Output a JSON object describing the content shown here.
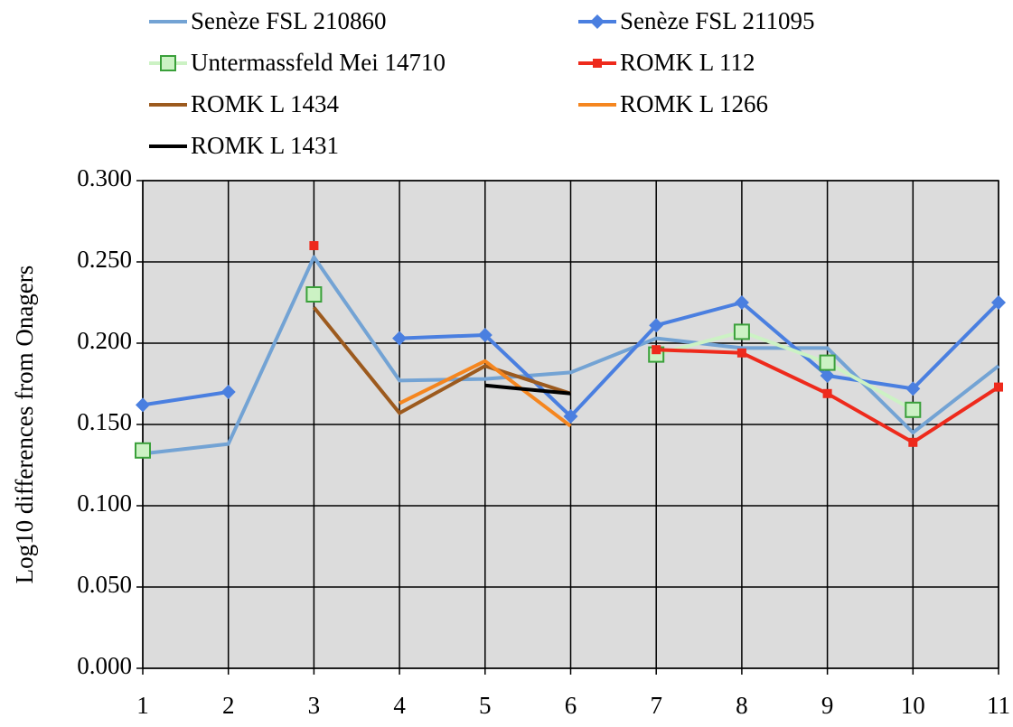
{
  "chart_data": {
    "type": "line",
    "y_label": "Log10 differences from Onagers",
    "x": [
      1,
      2,
      3,
      4,
      5,
      6,
      7,
      8,
      9,
      10,
      11
    ],
    "xlim": [
      1,
      11
    ],
    "xticks": [
      1,
      2,
      3,
      4,
      5,
      6,
      7,
      8,
      9,
      10,
      11
    ],
    "ylim": [
      0,
      0.3
    ],
    "yticks": [
      {
        "value": 0,
        "label": "0.000"
      },
      {
        "value": 0.05,
        "label": "0.050"
      },
      {
        "value": 0.1,
        "label": "0.100"
      },
      {
        "value": 0.15,
        "label": "0.150"
      },
      {
        "value": 0.2,
        "label": "0.200"
      },
      {
        "value": 0.25,
        "label": "0.250"
      },
      {
        "value": 0.3,
        "label": "0.300"
      }
    ],
    "grid": true,
    "series": [
      {
        "name": "Senèze FSL 210860",
        "color": "#73a3d4",
        "marker": "none",
        "values": [
          0.132,
          0.138,
          0.253,
          0.177,
          0.178,
          0.182,
          0.203,
          0.197,
          0.197,
          0.145,
          0.186
        ]
      },
      {
        "name": "Senèze FSL 211095",
        "color": "#4a7fe0",
        "marker": "diamond",
        "values": [
          0.162,
          0.17,
          null,
          0.203,
          0.205,
          0.155,
          0.211,
          0.225,
          0.18,
          0.172,
          0.225
        ]
      },
      {
        "name": "Untermassfeld Mei 14710",
        "color": "#ccf2c4",
        "marker": "square",
        "values": [
          0.134,
          null,
          0.23,
          null,
          null,
          null,
          0.193,
          0.207,
          0.188,
          0.159,
          null
        ]
      },
      {
        "name": "ROMK L 112",
        "color": "#ee2a1c",
        "marker": "small-square",
        "values": [
          null,
          null,
          0.26,
          null,
          null,
          null,
          0.196,
          0.194,
          0.169,
          0.139,
          0.173
        ]
      },
      {
        "name": "ROMK L 1434",
        "color": "#9c5a1e",
        "marker": "none",
        "values": [
          null,
          null,
          0.222,
          0.157,
          0.186,
          0.169,
          null,
          null,
          null,
          null,
          null
        ]
      },
      {
        "name": "ROMK L 1266",
        "color": "#f5861f",
        "marker": "none",
        "values": [
          null,
          null,
          null,
          0.163,
          0.189,
          0.149,
          null,
          null,
          null,
          null,
          null
        ]
      },
      {
        "name": "ROMK L 1431",
        "color": "#000000",
        "marker": "none",
        "values": [
          null,
          null,
          null,
          null,
          0.174,
          0.169,
          null,
          null,
          null,
          null,
          null
        ]
      }
    ]
  }
}
